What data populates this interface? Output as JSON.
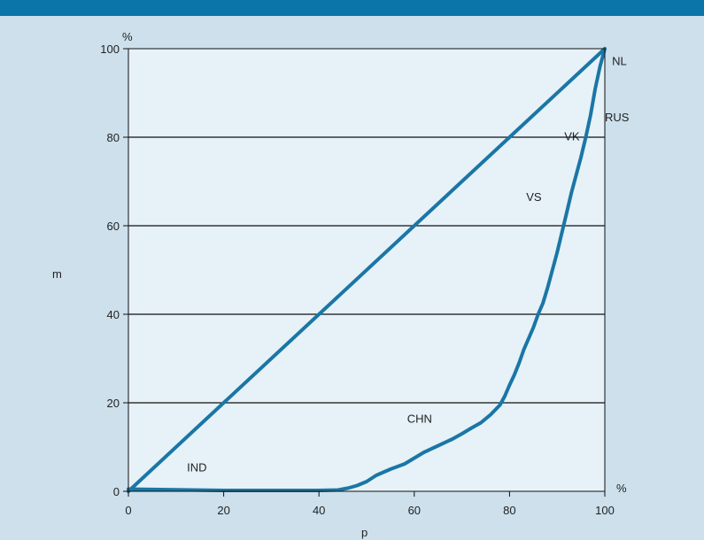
{
  "colors": {
    "background": "#cde0ec",
    "plot_background": "#e6f1f8",
    "top_bar": "#0b74a8",
    "series": "#1a76a5",
    "axis": "#111111"
  },
  "chart_data": {
    "type": "line",
    "xlabel": "p",
    "ylabel": "m",
    "x_unit": "%",
    "y_unit": "%",
    "xlim": [
      0,
      100
    ],
    "ylim": [
      0,
      100
    ],
    "xticks": [
      "0",
      "20",
      "40",
      "60",
      "80",
      "100"
    ],
    "yticks": [
      "0",
      "20",
      "40",
      "60",
      "80",
      "100"
    ],
    "grid": "horizontal",
    "series": [
      {
        "style": "diagonal",
        "points": [
          [
            0,
            0
          ],
          [
            100,
            100
          ]
        ]
      },
      {
        "style": "curve",
        "points": [
          [
            0,
            0.5
          ],
          [
            20,
            0.2
          ],
          [
            40,
            0.2
          ],
          [
            44,
            0.3
          ],
          [
            46,
            0.7
          ],
          [
            48,
            1.3
          ],
          [
            50,
            2.2
          ],
          [
            52,
            3.6
          ],
          [
            55,
            5
          ],
          [
            58,
            6.2
          ],
          [
            60,
            7.5
          ],
          [
            62,
            8.8
          ],
          [
            65,
            10.3
          ],
          [
            68,
            11.8
          ],
          [
            70,
            13
          ],
          [
            72,
            14.3
          ],
          [
            74,
            15.5
          ],
          [
            76,
            17.3
          ],
          [
            78,
            19.5
          ],
          [
            79,
            21.5
          ],
          [
            80,
            24
          ],
          [
            81,
            26.3
          ],
          [
            82,
            29
          ],
          [
            83,
            32
          ],
          [
            84,
            34.5
          ],
          [
            85,
            37
          ],
          [
            86,
            40
          ],
          [
            87,
            42.5
          ],
          [
            88,
            46
          ],
          [
            89,
            50
          ],
          [
            90,
            54
          ],
          [
            91,
            58.5
          ],
          [
            92,
            63
          ],
          [
            93,
            67.5
          ],
          [
            94,
            71.5
          ],
          [
            95,
            75.5
          ],
          [
            96,
            80
          ],
          [
            97,
            85
          ],
          [
            98,
            91
          ],
          [
            99,
            96
          ],
          [
            100,
            100
          ]
        ]
      }
    ],
    "annotations": [
      {
        "text": "NL",
        "x": 101.5,
        "y": 96.3
      },
      {
        "text": "RUS",
        "x": 100,
        "y": 83.6
      },
      {
        "text": "VK",
        "x": 91.5,
        "y": 79.3
      },
      {
        "text": "VS",
        "x": 83.5,
        "y": 65.6
      },
      {
        "text": "CHN",
        "x": 58.5,
        "y": 15.5
      },
      {
        "text": "IND",
        "x": 12.3,
        "y": 4.5
      }
    ]
  }
}
